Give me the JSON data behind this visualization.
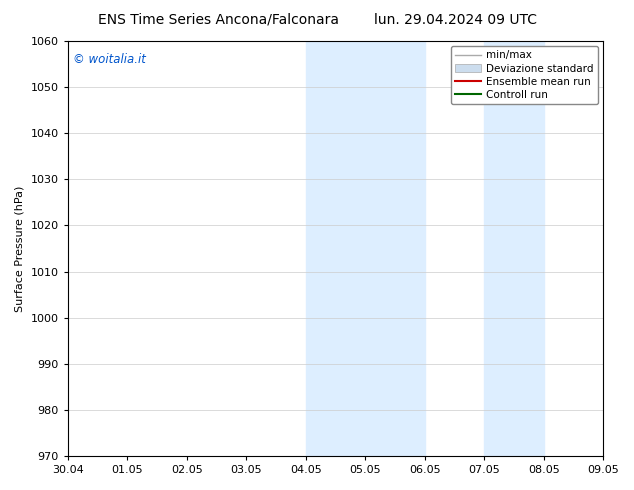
{
  "title_left": "ENS Time Series Ancona/Falconara",
  "title_right": "lun. 29.04.2024 09 UTC",
  "ylabel": "Surface Pressure (hPa)",
  "ylim": [
    970,
    1060
  ],
  "yticks": [
    970,
    980,
    990,
    1000,
    1010,
    1020,
    1030,
    1040,
    1050,
    1060
  ],
  "xtick_labels": [
    "30.04",
    "01.05",
    "02.05",
    "03.05",
    "04.05",
    "05.05",
    "06.05",
    "07.05",
    "08.05",
    "09.05"
  ],
  "xtick_positions": [
    0,
    1,
    2,
    3,
    4,
    5,
    6,
    7,
    8,
    9
  ],
  "background_color": "#ffffff",
  "plot_bg_color": "#ffffff",
  "shaded_bands": [
    {
      "xmin": 4,
      "xmax": 5.5,
      "color": "#ddeeff"
    },
    {
      "xmin": 5.5,
      "xmax": 6,
      "color": "#ddeeff"
    },
    {
      "xmin": 7,
      "xmax": 7.5,
      "color": "#ddeeff"
    },
    {
      "xmin": 7.5,
      "xmax": 8,
      "color": "#ddeeff"
    }
  ],
  "watermark_text": "© woitalia.it",
  "watermark_color": "#0055cc",
  "legend_entries": [
    {
      "label": "min/max",
      "color": "#aaaaaa",
      "linewidth": 1.0,
      "type": "line"
    },
    {
      "label": "Deviazione standard",
      "color": "#ccddee",
      "edgecolor": "#aaaaaa",
      "type": "patch"
    },
    {
      "label": "Ensemble mean run",
      "color": "#cc0000",
      "linewidth": 1.5,
      "type": "line"
    },
    {
      "label": "Controll run",
      "color": "#006600",
      "linewidth": 1.5,
      "type": "line"
    }
  ],
  "title_fontsize": 10,
  "tick_fontsize": 8,
  "ylabel_fontsize": 8,
  "legend_fontsize": 7.5
}
